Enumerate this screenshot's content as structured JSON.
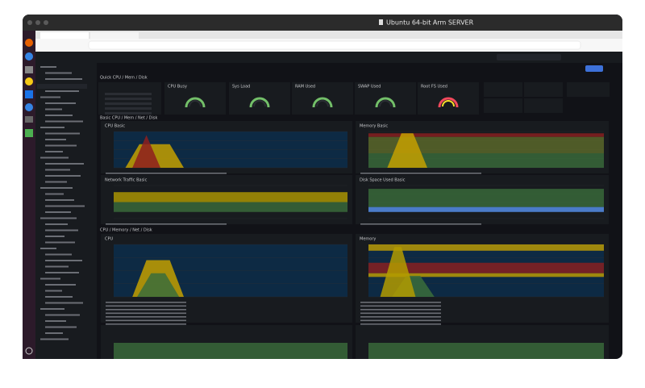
{
  "window": {
    "title": "Ubuntu 64-bit Arm SERVER"
  },
  "gauges": [
    "CPU Busy",
    "Sys Load",
    "RAM Used",
    "SWAP Used",
    "Root FS Used"
  ],
  "sections": [
    "Quick CPU / Mem / Disk",
    "Basic CPU / Mem / Net / Disk",
    "CPU / Memory / Net / Disk"
  ],
  "panels": [
    "CPU Basic",
    "Memory Basic",
    "Network Traffic Basic",
    "Disk Space Used Basic",
    "CPU",
    "Memory"
  ]
}
